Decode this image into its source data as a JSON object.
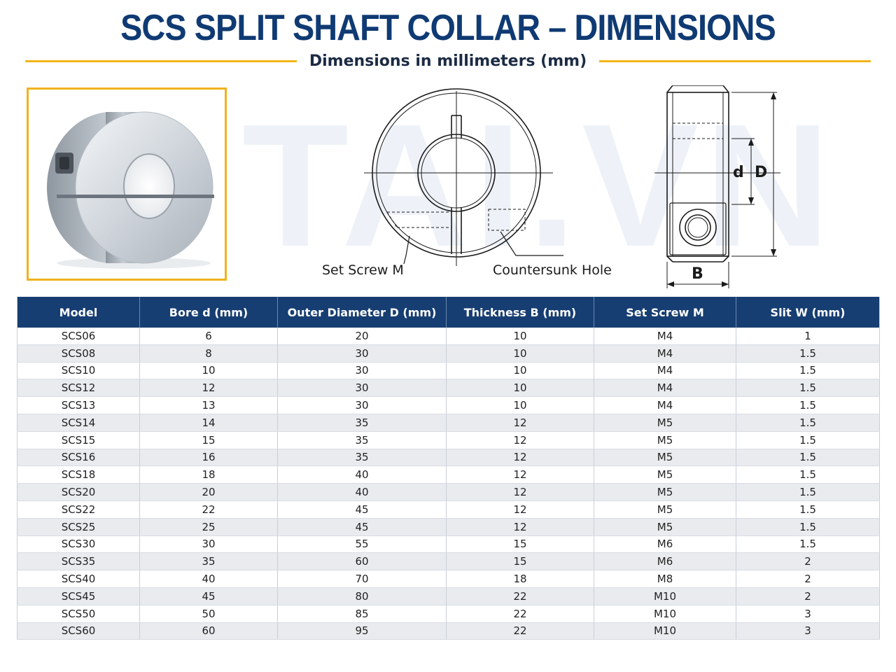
{
  "title": "SCS SPLIT SHAFT COLLAR – DIMENSIONS",
  "subtitle": "Dimensions in millimeters (mm)",
  "watermark": "TAI.VN",
  "diagram": {
    "set_screw_label": "Set Screw M",
    "countersunk_label": "Countersunk Hole",
    "bore_label": "d",
    "outer_label": "D",
    "thickness_label": "B"
  },
  "colors": {
    "title": "#0f3a73",
    "accent_line": "#f2b619",
    "table_header": "#173e72"
  },
  "table": {
    "headers": [
      "Model",
      "Bore d (mm)",
      "Outer Diameter D (mm)",
      "Thickness B (mm)",
      "Set Screw M",
      "Slit W (mm)"
    ],
    "rows": [
      [
        "SCS06",
        "6",
        "20",
        "10",
        "M4",
        "1"
      ],
      [
        "SCS08",
        "8",
        "30",
        "10",
        "M4",
        "1.5"
      ],
      [
        "SCS10",
        "10",
        "30",
        "10",
        "M4",
        "1.5"
      ],
      [
        "SCS12",
        "12",
        "30",
        "10",
        "M4",
        "1.5"
      ],
      [
        "SCS13",
        "13",
        "30",
        "10",
        "M4",
        "1.5"
      ],
      [
        "SCS14",
        "14",
        "35",
        "12",
        "M5",
        "1.5"
      ],
      [
        "SCS15",
        "15",
        "35",
        "12",
        "M5",
        "1.5"
      ],
      [
        "SCS16",
        "16",
        "35",
        "12",
        "M5",
        "1.5"
      ],
      [
        "SCS18",
        "18",
        "40",
        "12",
        "M5",
        "1.5"
      ],
      [
        "SCS20",
        "20",
        "40",
        "12",
        "M5",
        "1.5"
      ],
      [
        "SCS22",
        "22",
        "45",
        "12",
        "M5",
        "1.5"
      ],
      [
        "SCS25",
        "25",
        "45",
        "12",
        "M5",
        "1.5"
      ],
      [
        "SCS30",
        "30",
        "55",
        "15",
        "M6",
        "1.5"
      ],
      [
        "SCS35",
        "35",
        "60",
        "15",
        "M6",
        "2"
      ],
      [
        "SCS40",
        "40",
        "70",
        "18",
        "M8",
        "2"
      ],
      [
        "SCS45",
        "45",
        "80",
        "22",
        "M10",
        "2"
      ],
      [
        "SCS50",
        "50",
        "85",
        "22",
        "M10",
        "3"
      ],
      [
        "SCS60",
        "60",
        "95",
        "22",
        "M10",
        "3"
      ]
    ]
  }
}
